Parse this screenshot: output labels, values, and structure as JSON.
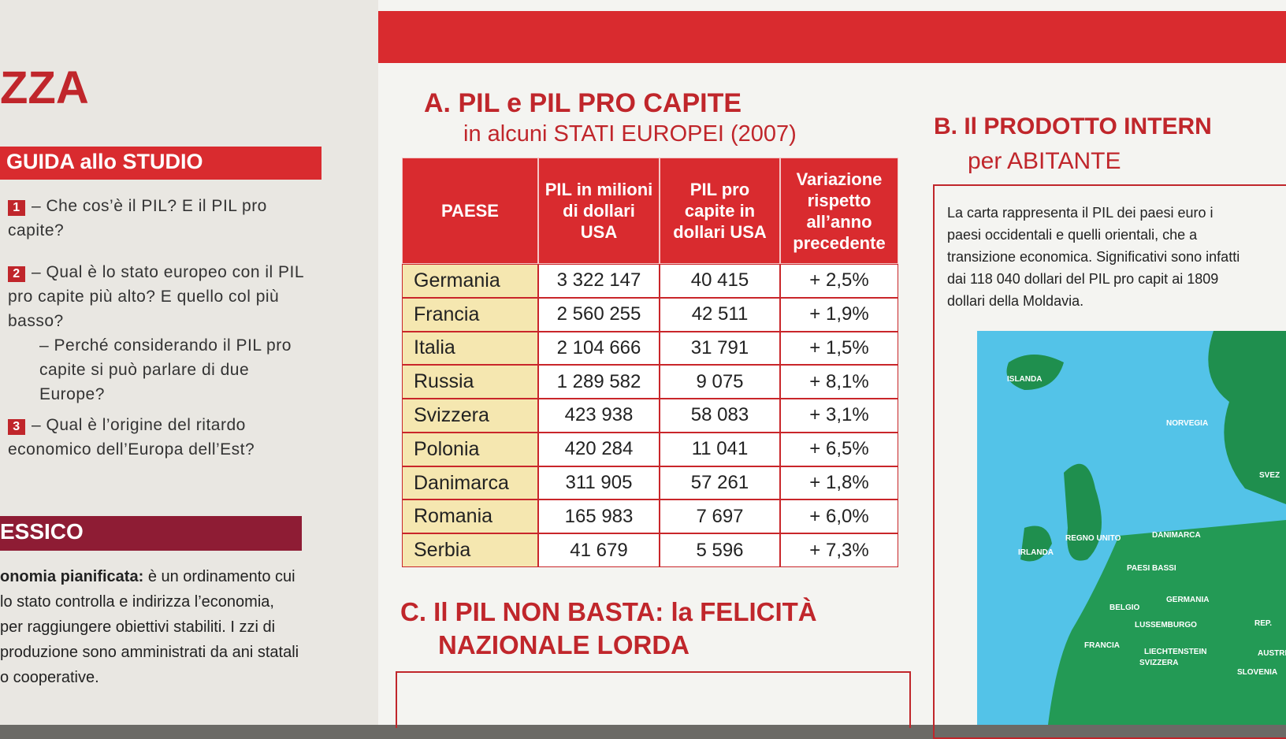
{
  "left_page": {
    "heading": "ZZA",
    "study_guide": {
      "title": "GUIDA allo STUDIO",
      "questions": [
        {
          "number": "1",
          "text": "– Che cos’è il PIL? E il PIL pro capite?"
        },
        {
          "number": "2",
          "text": "– Qual è lo stato europeo con il PIL pro capite più alto? E quello col più basso?",
          "sub": "– Perché considerando il PIL pro capite si può parlare di due Europe?"
        },
        {
          "number": "3",
          "text": "– Qual è l’origine del ritardo economico dell’Europa dell’Est?"
        }
      ]
    },
    "glossary": {
      "title": "ESSICO",
      "term": "onomia pianificata:",
      "definition": "è un ordinamento cui lo stato controlla e indirizza l’economia, per raggiungere obiettivi stabiliti. I zzi di produzione sono amministrati da ani statali o cooperative."
    }
  },
  "section_a": {
    "title": "A. PIL e PIL PRO CAPITE",
    "subtitle": "in alcuni STATI EUROPEI (2007)",
    "table": {
      "headers": [
        "PAESE",
        "PIL in milioni di dollari USA",
        "PIL pro capite in dollari USA",
        "Variazione rispetto all’anno precedente"
      ],
      "rows": [
        [
          "Germania",
          "3 322 147",
          "40 415",
          "+ 2,5%"
        ],
        [
          "Francia",
          "2 560 255",
          "42 511",
          "+ 1,9%"
        ],
        [
          "Italia",
          "2 104 666",
          "31 791",
          "+ 1,5%"
        ],
        [
          "Russia",
          "1 289 582",
          "9 075",
          "+ 8,1%"
        ],
        [
          "Svizzera",
          "423 938",
          "58 083",
          "+ 3,1%"
        ],
        [
          "Polonia",
          "420 284",
          "11 041",
          "+ 6,5%"
        ],
        [
          "Danimarca",
          "311 905",
          "57 261",
          "+ 1,8%"
        ],
        [
          "Romania",
          "165 983",
          "7 697",
          "+ 6,0%"
        ],
        [
          "Serbia",
          "41 679",
          "5 596",
          "+ 7,3%"
        ]
      ]
    }
  },
  "section_b": {
    "title": "B. Il PRODOTTO INTERN",
    "subtitle": "per ABITANTE",
    "text": "La carta rappresenta il PIL dei paesi euro i paesi occidentali e quelli orientali, che a transizione economica. Significativi sono infatti dai 118 040 dollari del PIL pro capit ai 1809 dollari della Moldavia.",
    "map_labels": [
      "ISLANDA",
      "NORVEGIA",
      "SVEZ",
      "DANIMARCA",
      "REGNO UNITO",
      "IRLANDA",
      "PAESI BASSI",
      "GERMANIA",
      "BELGIO",
      "LUSSEMBURGO",
      "REP.",
      "FRANCIA",
      "LIECHTENSTEIN",
      "SVIZZERA",
      "AUSTRI",
      "SLOVENIA"
    ]
  },
  "section_c": {
    "title": "C. Il PIL NON BASTA: la FELICITÀ",
    "subtitle": "NAZIONALE LORDA"
  }
}
